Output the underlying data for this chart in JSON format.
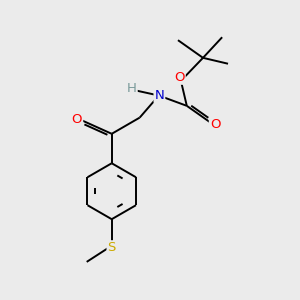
{
  "background_color": "#ebebeb",
  "atom_colors": {
    "C": "#000000",
    "H": "#7a9a9a",
    "N": "#0000cd",
    "O": "#ff0000",
    "S": "#ccaa00"
  },
  "bond_color": "#000000",
  "bond_width": 1.4,
  "figsize": [
    3.0,
    3.0
  ],
  "dpi": 100
}
